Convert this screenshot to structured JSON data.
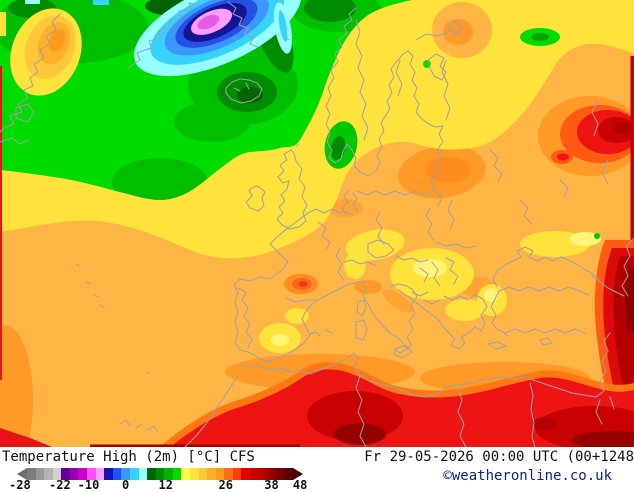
{
  "legend": {
    "title": "Temperature High (2m) [°C] CFS",
    "datetime": "Fr 29-05-2026 00:00 UTC (00+1248",
    "copyright": "©weatheronline.co.uk",
    "colorbar": {
      "tick_labels": [
        "-28",
        "-22",
        "-10",
        "0",
        "12",
        "26",
        "38",
        "48"
      ],
      "tick_positions_pct": [
        1,
        15,
        25,
        38,
        52,
        73,
        89,
        99
      ],
      "cells": [
        "#7C7C7C",
        "#989898",
        "#B4B4B4",
        "#D2D2D2",
        "#640096",
        "#9600B4",
        "#C800C8",
        "#FF50FF",
        "#FFA0FF",
        "#1414B4",
        "#1E50FF",
        "#3C96FF",
        "#38D2FF",
        "#96FFFF",
        "#006400",
        "#008C00",
        "#00B400",
        "#00DC00",
        "#FFFF46",
        "#FFE23C",
        "#FFC83C",
        "#FFAF28",
        "#FF9A1E",
        "#FF6E14",
        "#FF3C0A",
        "#E60000",
        "#C80000",
        "#B40000",
        "#960000",
        "#780000",
        "#5A0000"
      ],
      "left_arrow_color": "#6E6E6E",
      "right_arrow_color": "#460000"
    }
  },
  "map": {
    "palette": {
      "cold_core_magenta": "#E65AE6",
      "cold_pink": "#FF9CFF",
      "cold_dark_blue": "#141496",
      "cold_blue": "#2450E6",
      "cold_light_blue": "#3C96FF",
      "cold_cyan": "#38D2FF",
      "cold_light_cyan": "#96FFFF",
      "green_dark": "#006400",
      "green_mid": "#00BE00",
      "green_bright": "#00DC00",
      "yellow": "#FFE23C",
      "yellow_pale": "#FFF478",
      "orange_light": "#FFB446",
      "orange_deep": "#FF9A28",
      "red_orange": "#FF5A14",
      "red": "#EE1414",
      "red_dark": "#C80000",
      "maroon": "#8C0000",
      "coastline_gray": "#9EA0A8"
    }
  }
}
